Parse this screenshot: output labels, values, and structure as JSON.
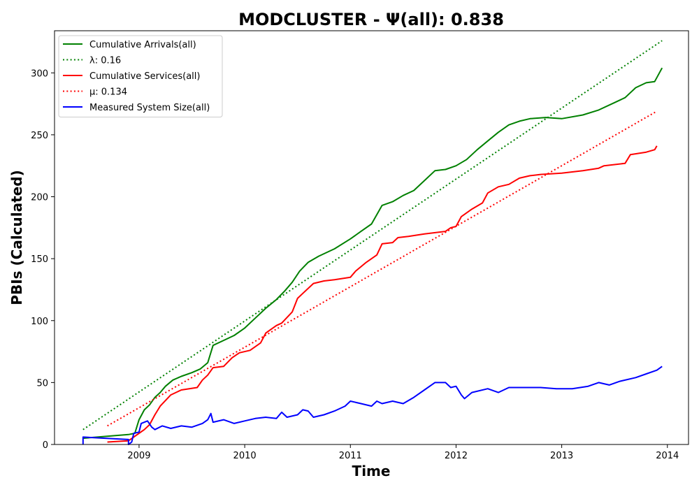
{
  "chart_data": {
    "type": "line",
    "title": "MODCLUSTER -  Ψ(all): 0.838",
    "xlabel": "Time",
    "ylabel": "PBIs (Calculated)",
    "xlim": [
      2008.2,
      2014.2
    ],
    "ylim": [
      0,
      334
    ],
    "x_ticks": [
      2009,
      2010,
      2011,
      2012,
      2013,
      2014
    ],
    "y_ticks": [
      0,
      50,
      100,
      150,
      200,
      250,
      300
    ],
    "grid": false,
    "legend_position": "top-left",
    "series": [
      {
        "name": "Cumulative Arrivals(all)",
        "color": "#008000",
        "style": "solid",
        "points": [
          [
            2008.47,
            5
          ],
          [
            2008.9,
            8
          ],
          [
            2008.96,
            9
          ],
          [
            2009.0,
            20
          ],
          [
            2009.05,
            28
          ],
          [
            2009.1,
            32
          ],
          [
            2009.15,
            38
          ],
          [
            2009.2,
            42
          ],
          [
            2009.25,
            47
          ],
          [
            2009.32,
            52
          ],
          [
            2009.4,
            55
          ],
          [
            2009.5,
            58
          ],
          [
            2009.58,
            61
          ],
          [
            2009.65,
            66
          ],
          [
            2009.7,
            80
          ],
          [
            2009.8,
            84
          ],
          [
            2009.9,
            88
          ],
          [
            2010.0,
            94
          ],
          [
            2010.1,
            102
          ],
          [
            2010.2,
            110
          ],
          [
            2010.3,
            117
          ],
          [
            2010.38,
            124
          ],
          [
            2010.45,
            131
          ],
          [
            2010.52,
            140
          ],
          [
            2010.6,
            147
          ],
          [
            2010.7,
            152
          ],
          [
            2010.85,
            158
          ],
          [
            2011.0,
            166
          ],
          [
            2011.1,
            172
          ],
          [
            2011.2,
            178
          ],
          [
            2011.3,
            193
          ],
          [
            2011.4,
            196
          ],
          [
            2011.5,
            201
          ],
          [
            2011.6,
            205
          ],
          [
            2011.7,
            213
          ],
          [
            2011.8,
            221
          ],
          [
            2011.9,
            222
          ],
          [
            2012.0,
            225
          ],
          [
            2012.1,
            230
          ],
          [
            2012.2,
            238
          ],
          [
            2012.3,
            245
          ],
          [
            2012.4,
            252
          ],
          [
            2012.5,
            258
          ],
          [
            2012.6,
            261
          ],
          [
            2012.7,
            263
          ],
          [
            2012.85,
            264
          ],
          [
            2013.0,
            263
          ],
          [
            2013.2,
            266
          ],
          [
            2013.35,
            270
          ],
          [
            2013.5,
            276
          ],
          [
            2013.6,
            280
          ],
          [
            2013.7,
            288
          ],
          [
            2013.8,
            292
          ],
          [
            2013.88,
            293
          ],
          [
            2013.95,
            304
          ]
        ]
      },
      {
        "name": "λ: 0.16",
        "color": "#008000",
        "style": "dotted",
        "points": [
          [
            2008.47,
            12
          ],
          [
            2013.95,
            326
          ]
        ]
      },
      {
        "name": "Cumulative Services(all)",
        "color": "#ff0000",
        "style": "solid",
        "points": [
          [
            2008.7,
            2
          ],
          [
            2008.9,
            3
          ],
          [
            2009.0,
            9
          ],
          [
            2009.05,
            12
          ],
          [
            2009.1,
            16
          ],
          [
            2009.15,
            24
          ],
          [
            2009.2,
            31
          ],
          [
            2009.3,
            40
          ],
          [
            2009.4,
            44
          ],
          [
            2009.55,
            46
          ],
          [
            2009.6,
            52
          ],
          [
            2009.65,
            56
          ],
          [
            2009.7,
            62
          ],
          [
            2009.8,
            63
          ],
          [
            2009.88,
            70
          ],
          [
            2009.95,
            74
          ],
          [
            2010.05,
            76
          ],
          [
            2010.15,
            82
          ],
          [
            2010.2,
            90
          ],
          [
            2010.3,
            96
          ],
          [
            2010.35,
            98
          ],
          [
            2010.45,
            107
          ],
          [
            2010.5,
            118
          ],
          [
            2010.55,
            122
          ],
          [
            2010.65,
            130
          ],
          [
            2010.75,
            132
          ],
          [
            2010.85,
            133
          ],
          [
            2011.0,
            135
          ],
          [
            2011.05,
            140
          ],
          [
            2011.15,
            147
          ],
          [
            2011.25,
            153
          ],
          [
            2011.3,
            162
          ],
          [
            2011.4,
            163
          ],
          [
            2011.45,
            167
          ],
          [
            2011.55,
            168
          ],
          [
            2011.7,
            170
          ],
          [
            2011.9,
            172
          ],
          [
            2011.95,
            175
          ],
          [
            2012.0,
            176
          ],
          [
            2012.05,
            184
          ],
          [
            2012.15,
            190
          ],
          [
            2012.25,
            195
          ],
          [
            2012.3,
            203
          ],
          [
            2012.4,
            208
          ],
          [
            2012.5,
            210
          ],
          [
            2012.6,
            215
          ],
          [
            2012.7,
            217
          ],
          [
            2012.8,
            218
          ],
          [
            2013.0,
            219
          ],
          [
            2013.2,
            221
          ],
          [
            2013.35,
            223
          ],
          [
            2013.4,
            225
          ],
          [
            2013.6,
            227
          ],
          [
            2013.65,
            234
          ],
          [
            2013.8,
            236
          ],
          [
            2013.88,
            238
          ],
          [
            2013.9,
            241
          ]
        ]
      },
      {
        "name": "μ: 0.134",
        "color": "#ff0000",
        "style": "dotted",
        "points": [
          [
            2008.7,
            15
          ],
          [
            2013.9,
            269
          ]
        ]
      },
      {
        "name": "Measured System Size(all)",
        "color": "#0000ff",
        "style": "solid",
        "points": [
          [
            2008.47,
            0
          ],
          [
            2008.47,
            6
          ],
          [
            2008.9,
            4
          ],
          [
            2008.9,
            0
          ],
          [
            2008.93,
            2
          ],
          [
            2008.95,
            9
          ],
          [
            2009.0,
            10
          ],
          [
            2009.02,
            17
          ],
          [
            2009.08,
            19
          ],
          [
            2009.12,
            14
          ],
          [
            2009.15,
            12
          ],
          [
            2009.22,
            15
          ],
          [
            2009.3,
            13
          ],
          [
            2009.4,
            15
          ],
          [
            2009.5,
            14
          ],
          [
            2009.6,
            17
          ],
          [
            2009.65,
            20
          ],
          [
            2009.68,
            25
          ],
          [
            2009.7,
            18
          ],
          [
            2009.8,
            20
          ],
          [
            2009.9,
            17
          ],
          [
            2010.0,
            19
          ],
          [
            2010.1,
            21
          ],
          [
            2010.2,
            22
          ],
          [
            2010.3,
            21
          ],
          [
            2010.35,
            26
          ],
          [
            2010.4,
            22
          ],
          [
            2010.5,
            24
          ],
          [
            2010.55,
            28
          ],
          [
            2010.6,
            27
          ],
          [
            2010.65,
            22
          ],
          [
            2010.75,
            24
          ],
          [
            2010.85,
            27
          ],
          [
            2010.95,
            31
          ],
          [
            2011.0,
            35
          ],
          [
            2011.1,
            33
          ],
          [
            2011.2,
            31
          ],
          [
            2011.25,
            35
          ],
          [
            2011.3,
            33
          ],
          [
            2011.4,
            35
          ],
          [
            2011.5,
            33
          ],
          [
            2011.6,
            38
          ],
          [
            2011.7,
            44
          ],
          [
            2011.8,
            50
          ],
          [
            2011.9,
            50
          ],
          [
            2011.95,
            46
          ],
          [
            2012.0,
            47
          ],
          [
            2012.05,
            40
          ],
          [
            2012.08,
            37
          ],
          [
            2012.15,
            42
          ],
          [
            2012.3,
            45
          ],
          [
            2012.4,
            42
          ],
          [
            2012.5,
            46
          ],
          [
            2012.6,
            46
          ],
          [
            2012.8,
            46
          ],
          [
            2012.95,
            45
          ],
          [
            2013.1,
            45
          ],
          [
            2013.25,
            47
          ],
          [
            2013.35,
            50
          ],
          [
            2013.45,
            48
          ],
          [
            2013.55,
            51
          ],
          [
            2013.7,
            54
          ],
          [
            2013.8,
            57
          ],
          [
            2013.9,
            60
          ],
          [
            2013.95,
            63
          ]
        ]
      }
    ]
  }
}
